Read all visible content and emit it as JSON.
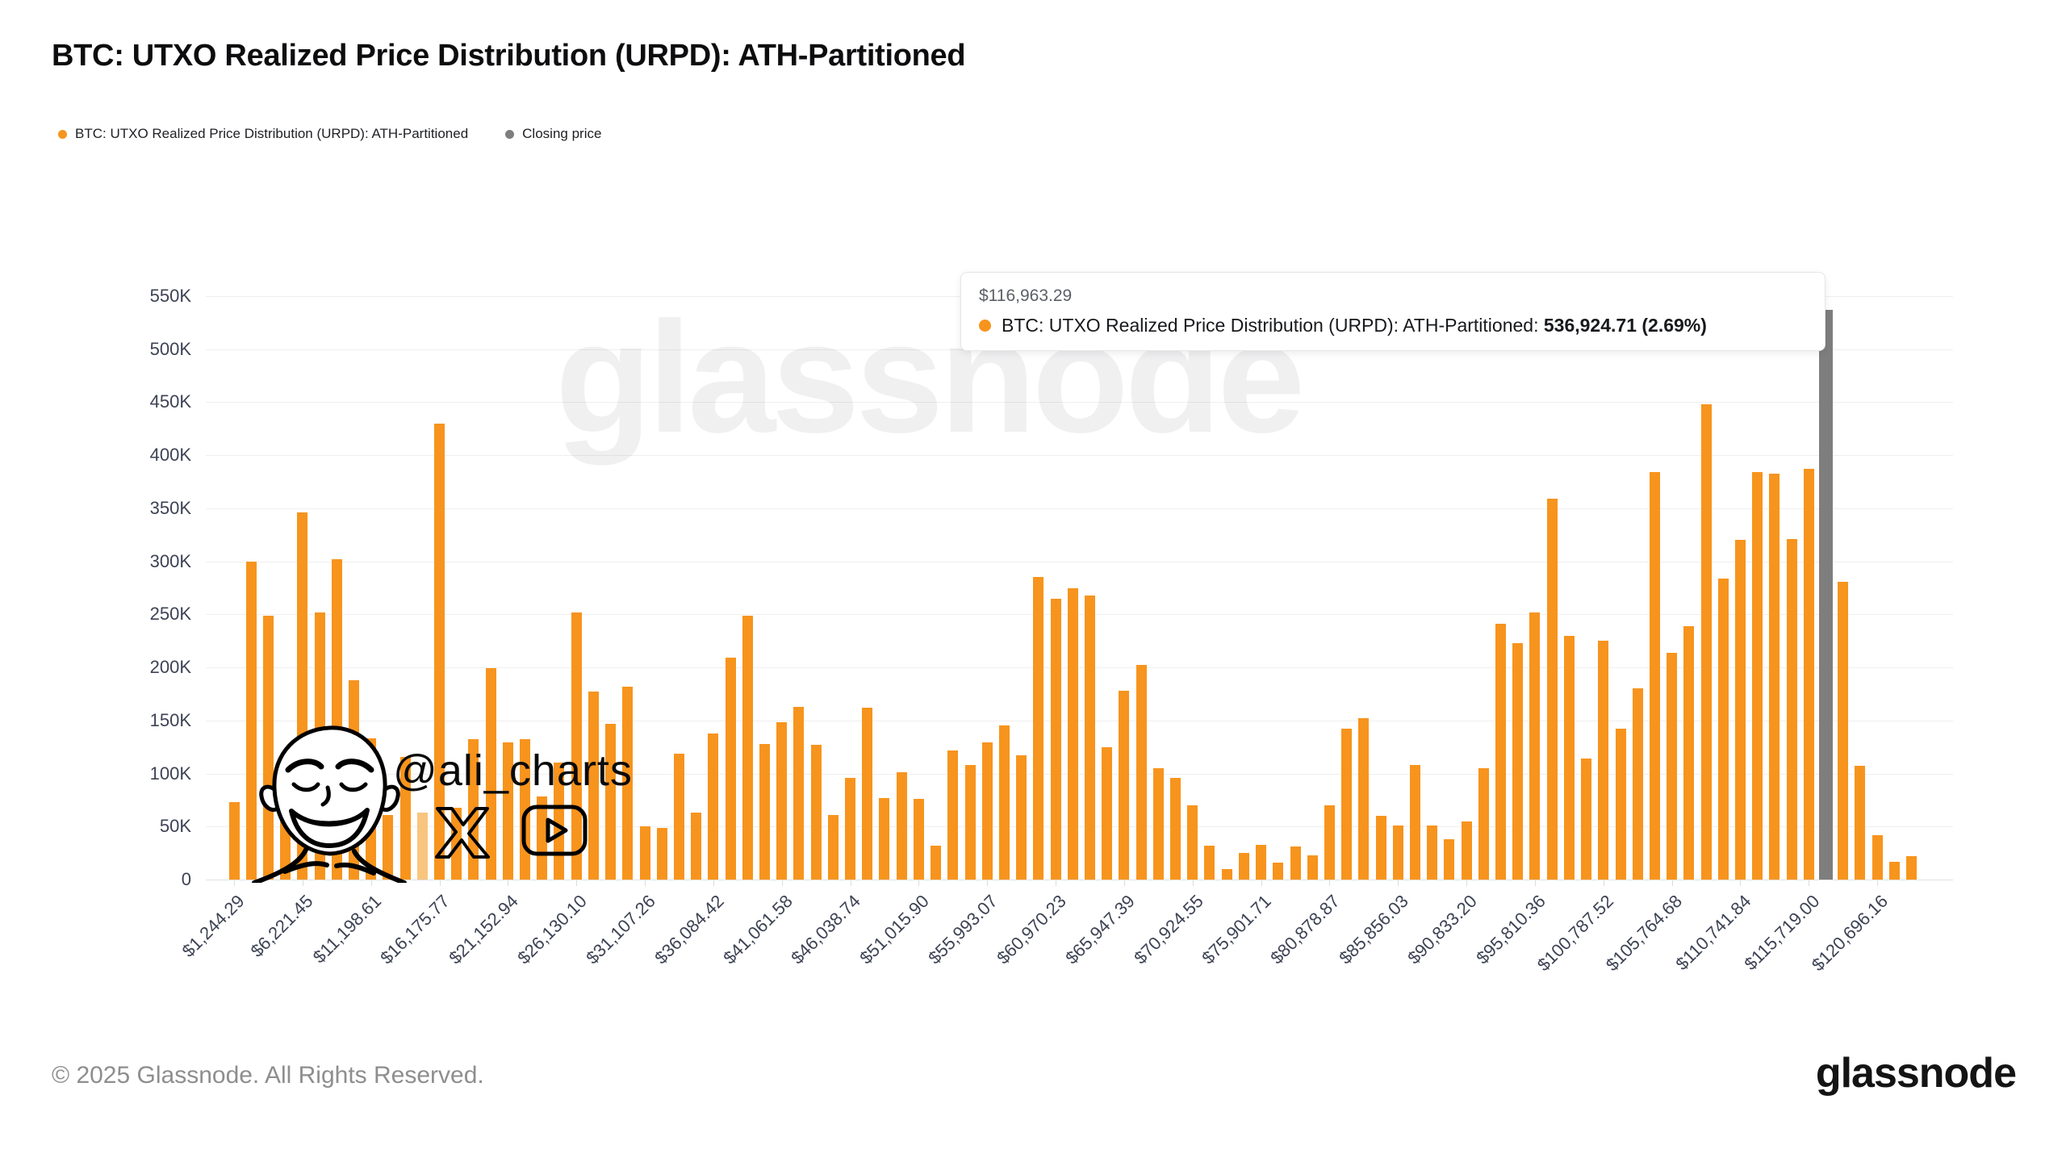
{
  "header": {
    "title": "BTC: UTXO Realized Price Distribution (URPD): ATH-Partitioned"
  },
  "legend": {
    "items": [
      {
        "label": "BTC: UTXO Realized Price Distribution (URPD): ATH-Partitioned",
        "color": "#F7941D"
      },
      {
        "label": "Closing price",
        "color": "#7E7E7E"
      }
    ]
  },
  "tooltip": {
    "price": "$116,963.29",
    "series_label": "BTC: UTXO Realized Price Distribution (URPD): ATH-Partitioned:",
    "value_text": "536,924.71 (2.69%)",
    "dot_color": "#F7941D"
  },
  "watermarks": {
    "brand_text": "glassnode",
    "handle": "@ali_charts"
  },
  "footer": {
    "copyright": "© 2025 Glassnode. All Rights Reserved.",
    "brand": "glassnode"
  },
  "chart_data": {
    "type": "bar",
    "title": "BTC: UTXO Realized Price Distribution (URPD): ATH-Partitioned",
    "series_name": "BTC: UTXO Realized Price Distribution (URPD): ATH-Partitioned",
    "values_scale": "thousands",
    "grid": true,
    "legend_position": "top-left",
    "y_axis": {
      "ticks": [
        "0",
        "50K",
        "100K",
        "150K",
        "200K",
        "250K",
        "300K",
        "350K",
        "400K",
        "450K",
        "500K",
        "550K"
      ],
      "min": 0,
      "max_thousands": 550
    },
    "x_axis": {
      "tick_labels": [
        "$1,244.29",
        "$6,221.45",
        "$11,198.61",
        "$16,175.77",
        "$21,152.94",
        "$26,130.10",
        "$31,107.26",
        "$36,084.42",
        "$41,061.58",
        "$46,038.74",
        "$51,015.90",
        "$55,993.07",
        "$60,970.23",
        "$65,947.39",
        "$70,924.55",
        "$75,901.71",
        "$80,878.87",
        "$85,856.03",
        "$90,833.20",
        "$95,810.36",
        "$100,787.52",
        "$105,764.68",
        "$110,741.84",
        "$115,719.00",
        "$120,696.16"
      ],
      "tick_every_n_bins": 4,
      "first_tick_bin_index": 0,
      "bin_width_usd_approx": 1244.29
    },
    "values_thousands": [
      73,
      300,
      249,
      105,
      346,
      252,
      302,
      188,
      133,
      61,
      116,
      63,
      430,
      68,
      132,
      199,
      129,
      132,
      78,
      110,
      252,
      177,
      147,
      182,
      50,
      49,
      119,
      63,
      138,
      209,
      249,
      128,
      148,
      163,
      127,
      61,
      96,
      162,
      77,
      101,
      76,
      32,
      122,
      108,
      129,
      145,
      117,
      285,
      265,
      275,
      268,
      125,
      178,
      202,
      105,
      96,
      70,
      32,
      10,
      25,
      33,
      16,
      31,
      23,
      70,
      142,
      152,
      60,
      51,
      108,
      51,
      38,
      55,
      105,
      241,
      223,
      252,
      359,
      230,
      114,
      225,
      142,
      180,
      384,
      214,
      239,
      448,
      284,
      320,
      384,
      383,
      321,
      387,
      536.92,
      281,
      107,
      42,
      17,
      22
    ],
    "highlight": {
      "bin_index": 93,
      "price_label": "$116,963.29",
      "value": 536924.71,
      "percent": "2.69%",
      "style": "closing-price-gray-bar"
    },
    "special_bins": {
      "pale_bin_index": 11
    },
    "colors": {
      "bar": "#F7941D",
      "bar_pale": "#F8C57E",
      "closing": "#7E7E7E",
      "gridline": "#efefef"
    }
  }
}
